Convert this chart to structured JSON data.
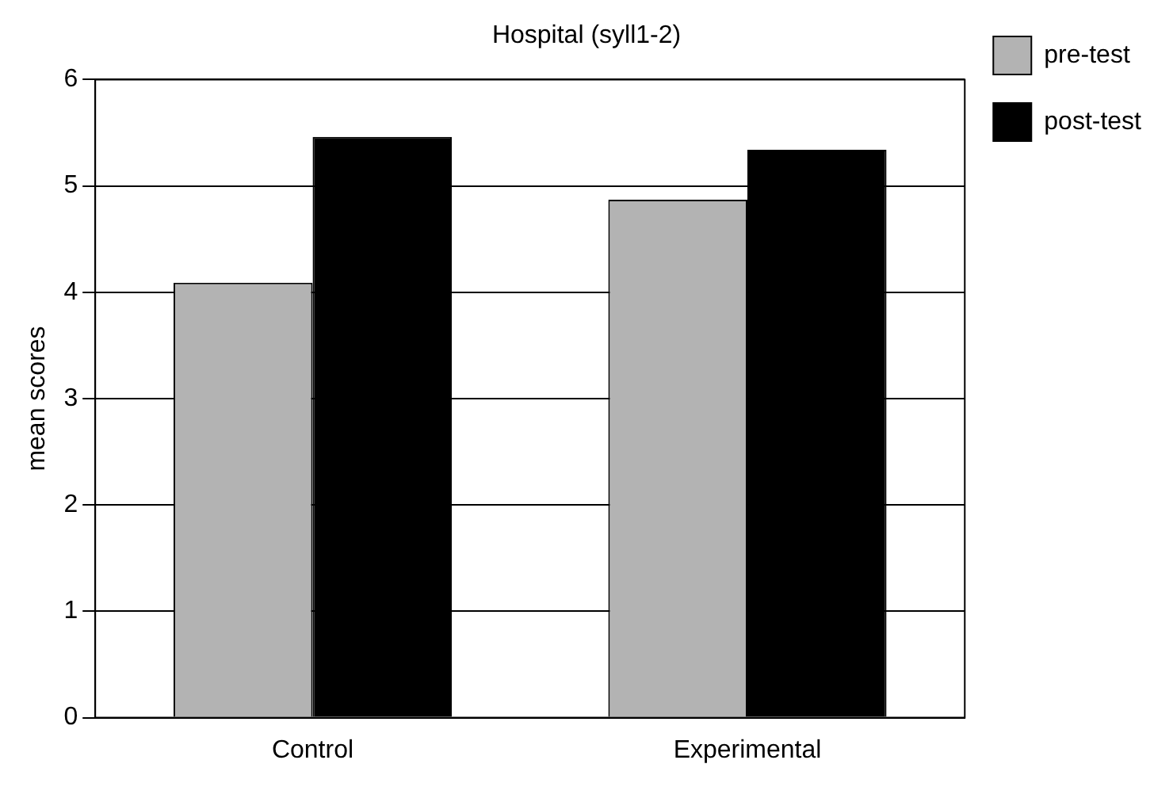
{
  "chart_data": {
    "type": "bar",
    "title": "Hospital (syll1-2)",
    "ylabel": "mean scores",
    "categories": [
      "Control",
      "Experimental"
    ],
    "series": [
      {
        "name": "pre-test",
        "color": "#b3b3b3",
        "values": [
          4.09,
          4.87
        ]
      },
      {
        "name": "post-test",
        "color": "#000000",
        "values": [
          5.46,
          5.34
        ]
      }
    ],
    "ylim": [
      0,
      6
    ],
    "yticks": [
      0,
      1,
      2,
      3,
      4,
      5,
      6
    ],
    "grid": "y",
    "legend": "right"
  }
}
